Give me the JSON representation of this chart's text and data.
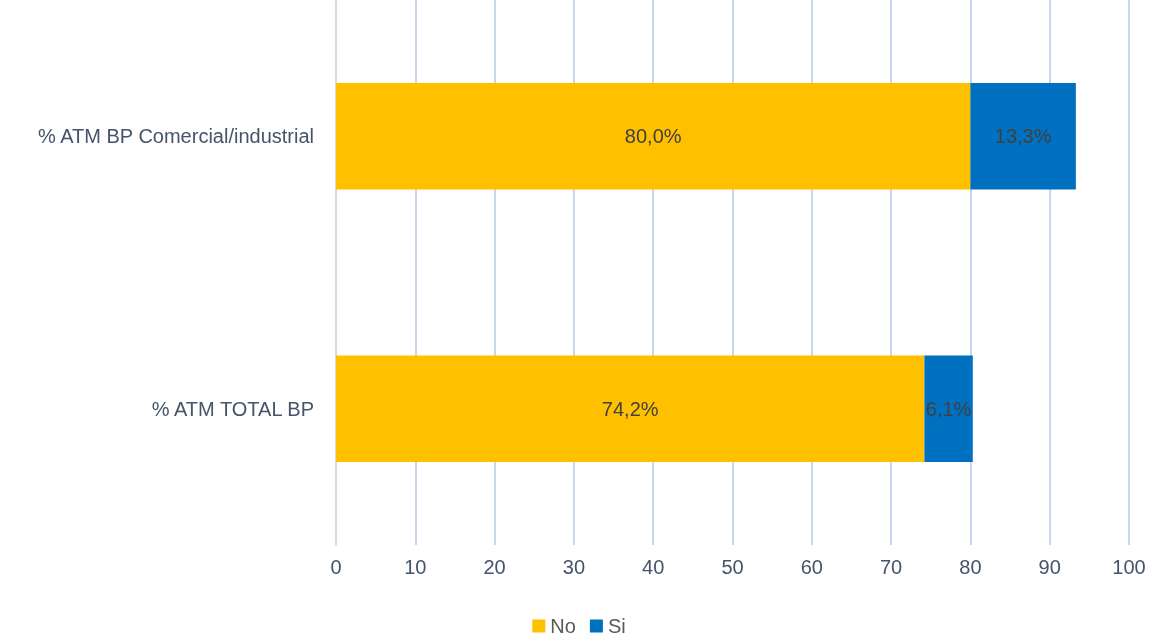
{
  "chart_data": {
    "type": "bar",
    "orientation": "horizontal",
    "stacked": true,
    "categories": [
      "% ATM BP Comercial/industrial",
      "% ATM TOTAL BP"
    ],
    "series": [
      {
        "name": "No",
        "color": "#ffc000",
        "values": [
          80.0,
          74.2
        ],
        "value_labels": [
          "80,0%",
          "74,2%"
        ]
      },
      {
        "name": "Si",
        "color": "#0070c0",
        "values": [
          13.3,
          6.1
        ],
        "value_labels": [
          "13,3%",
          "6,1%"
        ]
      }
    ],
    "xlim": [
      0,
      100
    ],
    "xticks": [
      0,
      10,
      20,
      30,
      40,
      50,
      60,
      70,
      80,
      90,
      100
    ],
    "grid": "x",
    "legend": "bottom"
  }
}
